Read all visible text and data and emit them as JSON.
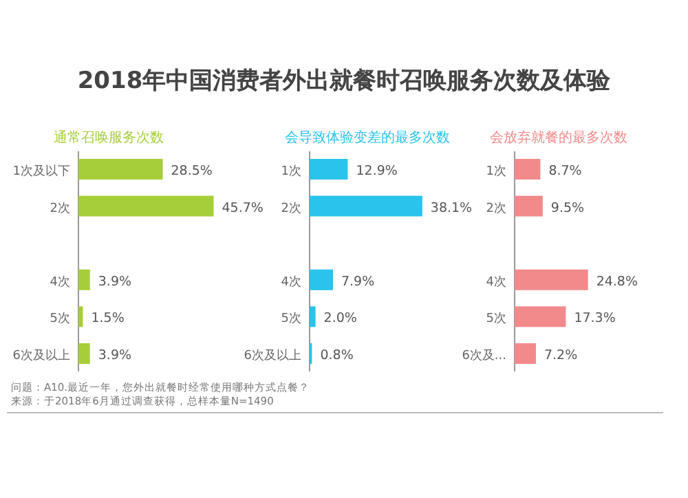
{
  "chart_data": [
    {
      "type": "bar",
      "orientation": "horizontal",
      "title": "2018年中国消费者外出就餐时召唤服务次数及体验",
      "subtitle": "通常召唤服务次数",
      "categories": [
        "1次及以下",
        "2次",
        null,
        "4次",
        "5次",
        "6次及以上"
      ],
      "values": [
        28.5,
        45.7,
        null,
        3.9,
        1.5,
        3.9
      ],
      "value_labels": [
        "28.5%",
        "45.7%",
        null,
        "3.9%",
        "1.5%",
        "3.9%"
      ],
      "color": "#a6ce39"
    },
    {
      "type": "bar",
      "orientation": "horizontal",
      "subtitle": "会导致体验变差的最多次数",
      "categories": [
        "1次",
        "2次",
        null,
        "4次",
        "5次",
        "6次及以上"
      ],
      "values": [
        12.9,
        38.1,
        null,
        7.9,
        2.0,
        0.8
      ],
      "value_labels": [
        "12.9%",
        "38.1%",
        null,
        "7.9%",
        "2.0%",
        "0.8%"
      ],
      "color": "#29c3ec"
    },
    {
      "type": "bar",
      "orientation": "horizontal",
      "subtitle": "会放弃就餐的最多次数",
      "categories": [
        "1次",
        "2次",
        null,
        "4次",
        "5次",
        "6次及..."
      ],
      "values": [
        8.7,
        9.5,
        null,
        24.8,
        17.3,
        7.2
      ],
      "value_labels": [
        "8.7%",
        "9.5%",
        null,
        "24.8%",
        "17.3%",
        "7.2%"
      ],
      "color": "#f28a8c",
      "annotations": [
        "问题：A10.最近一年，您外出就餐时经常使用哪种方式点餐？",
        "来源：于2018年6月通过调查获得，总样本量N=1490"
      ]
    }
  ]
}
